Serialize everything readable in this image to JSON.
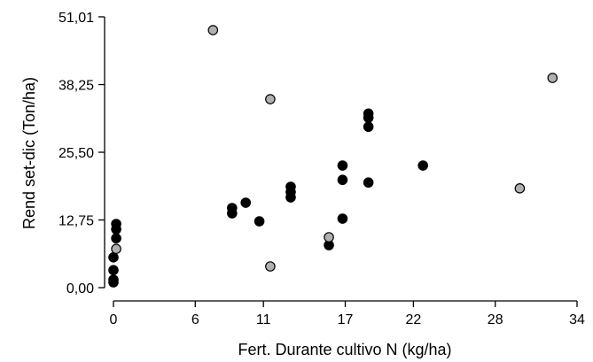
{
  "chart_data": {
    "type": "scatter",
    "title": "",
    "xlabel": "Fert. Durante cultivo N (kg/ha)",
    "ylabel": "Rend set-dic (Ton/ha)",
    "xlim": [
      0,
      34
    ],
    "ylim": [
      0,
      51.01
    ],
    "x_ticks": [
      0,
      6,
      11,
      17,
      22,
      28,
      34
    ],
    "x_tick_labels": [
      "0",
      "6",
      "11",
      "17",
      "22",
      "28",
      "34"
    ],
    "y_ticks": [
      0,
      12.75,
      25.5,
      38.25,
      51.01
    ],
    "y_tick_labels": [
      "0,00",
      "12,75",
      "25,50",
      "38,25",
      "51,01"
    ],
    "grid": false,
    "series": [
      {
        "color": "#000000",
        "points": [
          [
            0,
            1.0
          ],
          [
            0,
            1.5
          ],
          [
            0,
            3.3
          ],
          [
            0,
            5.7
          ],
          [
            0.2,
            9.3
          ],
          [
            0.2,
            11.0
          ],
          [
            0.2,
            12.0
          ],
          [
            8.7,
            14.0
          ],
          [
            8.7,
            15.0
          ],
          [
            9.7,
            16.0
          ],
          [
            10.7,
            12.5
          ],
          [
            13.0,
            17.0
          ],
          [
            13.0,
            18.0
          ],
          [
            13.0,
            19.0
          ],
          [
            15.8,
            8.0
          ],
          [
            16.8,
            13.0
          ],
          [
            16.8,
            20.3
          ],
          [
            16.8,
            23.0
          ],
          [
            18.7,
            19.8
          ],
          [
            18.7,
            30.3
          ],
          [
            18.7,
            32.0
          ],
          [
            18.7,
            32.8
          ],
          [
            22.7,
            23.0
          ]
        ]
      },
      {
        "color": "#b0b0b0",
        "points": [
          [
            0.2,
            7.3
          ],
          [
            7.3,
            48.5
          ],
          [
            11.5,
            35.5
          ],
          [
            11.5,
            4.0
          ],
          [
            15.8,
            9.5
          ],
          [
            29.8,
            18.7
          ],
          [
            32.2,
            39.5
          ]
        ]
      }
    ]
  }
}
